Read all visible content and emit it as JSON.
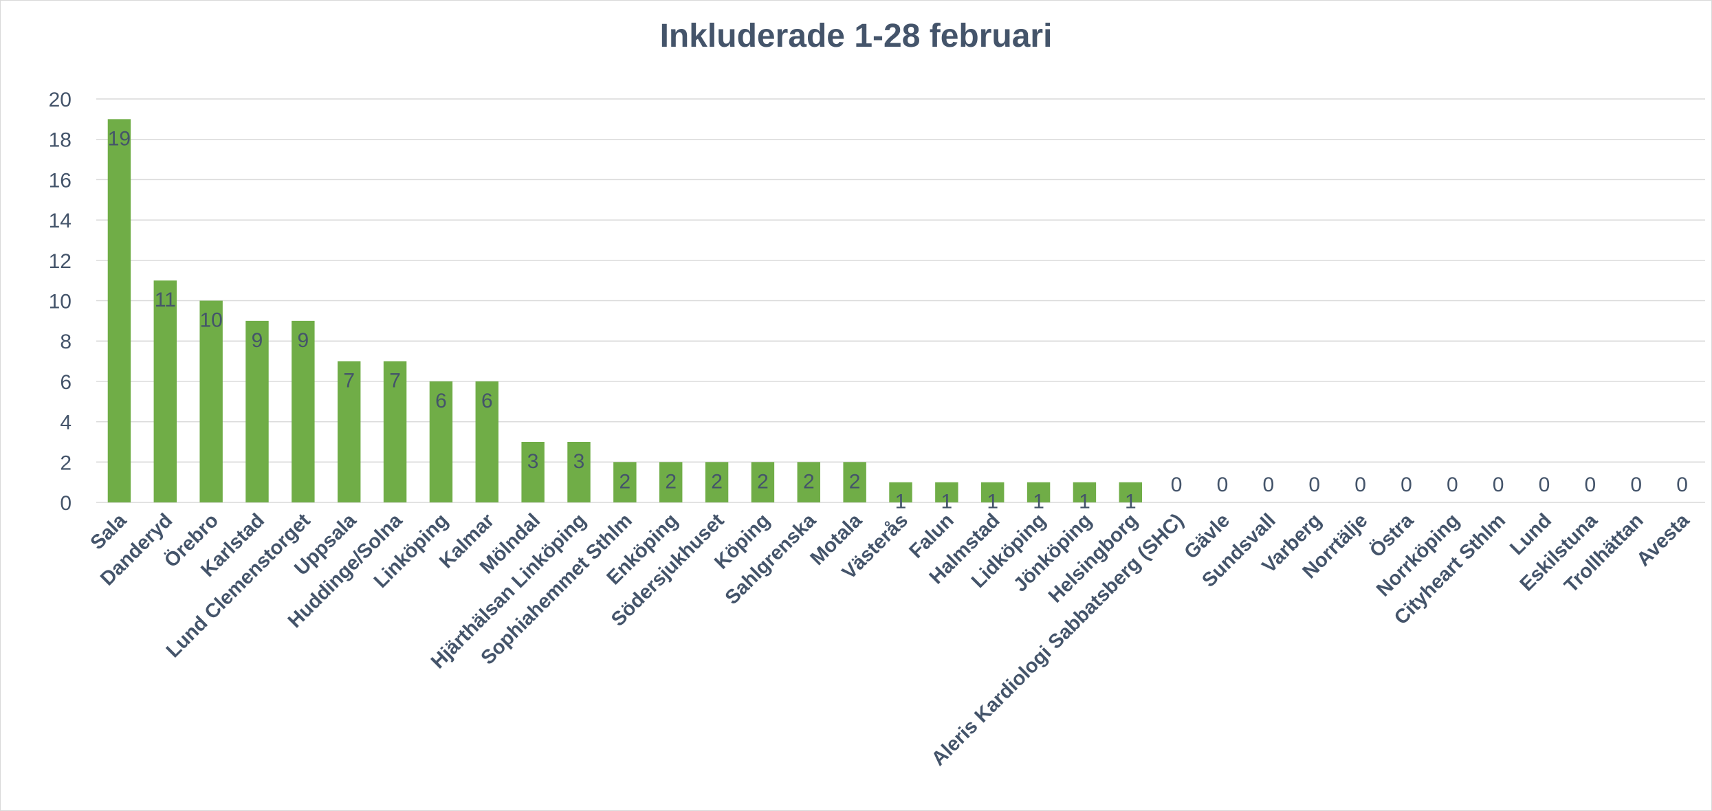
{
  "chart_data": {
    "type": "bar",
    "title": "Inkluderade 1-28 februari",
    "xlabel": "",
    "ylabel": "",
    "ylim": [
      0,
      20
    ],
    "yticks": [
      0,
      2,
      4,
      6,
      8,
      10,
      12,
      14,
      16,
      18,
      20
    ],
    "grid": true,
    "legend": "none",
    "bar_color": "#70ad47",
    "text_color": "#44546a",
    "grid_color": "#d9d9d9",
    "categories": [
      "Sala",
      "Danderyd",
      "Örebro",
      "Karlstad",
      "Lund Clemenstorget",
      "Uppsala",
      "Huddinge/Solna",
      "Linköping",
      "Kalmar",
      "Mölndal",
      "Hjärthälsan Linköping",
      "Sophiahemmet Sthlm",
      "Enköping",
      "Södersjukhuset",
      "Köping",
      "Sahlgrenska",
      "Motala",
      "Västerås",
      "Falun",
      "Halmstad",
      "Lidköping",
      "Jönköping",
      "Helsingborg",
      "Aleris Kardiologi Sabbatsberg (SHC)",
      "Gävle",
      "Sundsvall",
      "Varberg",
      "Norrtälje",
      "Östra",
      "Norrköping",
      "Cityheart Sthlm",
      "Lund",
      "Eskilstuna",
      "Trollhättan",
      "Avesta"
    ],
    "values": [
      19,
      11,
      10,
      9,
      9,
      7,
      7,
      6,
      6,
      3,
      3,
      2,
      2,
      2,
      2,
      2,
      2,
      1,
      1,
      1,
      1,
      1,
      1,
      0,
      0,
      0,
      0,
      0,
      0,
      0,
      0,
      0,
      0,
      0,
      0
    ]
  }
}
